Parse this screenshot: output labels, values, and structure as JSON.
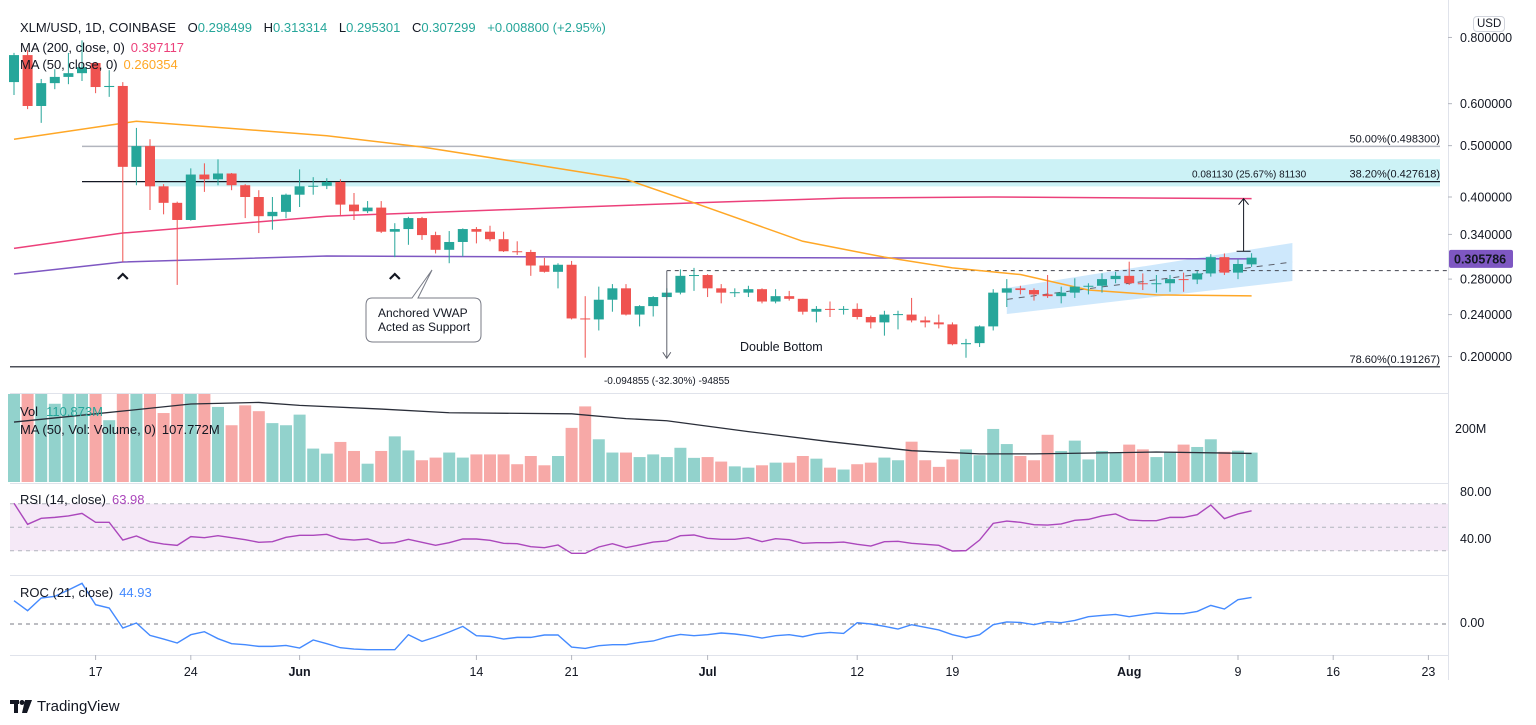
{
  "header": {
    "symbol": "XLM/USD, 1D, COINBASE",
    "o_label": "O",
    "o": "0.298499",
    "h_label": "H",
    "h": "0.313314",
    "l_label": "L",
    "l": "0.295301",
    "c_label": "C",
    "c": "0.307299",
    "change": "+0.008800 (+2.95%)"
  },
  "indicators": {
    "ma200_label": "MA (200, close, 0)",
    "ma200_value": "0.397117",
    "ma50_label": "MA (50, close, 0)",
    "ma50_value": "0.260354",
    "vol_label": "Vol",
    "vol_value": "110.873M",
    "vol_ma_label": "MA (50, Vol: Volume, 0)",
    "vol_ma_value": "107.772M",
    "rsi_label": "RSI (14, close)",
    "rsi_value": "63.98",
    "roc_label": "ROC (21, close)",
    "roc_value": "44.93"
  },
  "axis": {
    "currency": "USD",
    "price_ticks": [
      "0.800000",
      "0.600000",
      "0.500000",
      "0.400000",
      "0.340000",
      "0.280000",
      "0.240000",
      "0.200000"
    ],
    "current_price": "0.305786",
    "volume_tick": "200M",
    "rsi_ticks": [
      "80.00",
      "40.00"
    ],
    "roc_ticks": [
      "0.00"
    ],
    "time_ticks": [
      {
        "label": "17",
        "date": "May 17",
        "bold": false
      },
      {
        "label": "24",
        "date": "May 24",
        "bold": false
      },
      {
        "label": "Jun",
        "date": "Jun 1",
        "bold": true
      },
      {
        "label": "14",
        "date": "Jun 14",
        "bold": false
      },
      {
        "label": "21",
        "date": "Jun 21",
        "bold": false
      },
      {
        "label": "Jul",
        "date": "Jul 1",
        "bold": true
      },
      {
        "label": "12",
        "date": "Jul 12",
        "bold": false
      },
      {
        "label": "19",
        "date": "Jul 19",
        "bold": false
      },
      {
        "label": "Aug",
        "date": "Aug 1",
        "bold": true
      },
      {
        "label": "9",
        "date": "Aug 9",
        "bold": false
      },
      {
        "label": "16",
        "date": "Aug 16",
        "bold": false
      },
      {
        "label": "23",
        "date": "Aug 23",
        "bold": false
      }
    ]
  },
  "annotations": {
    "fib_50": {
      "label": "50.00%(0.498300)",
      "price": 0.4983,
      "from": "May 16"
    },
    "fib_382": {
      "label": "38.20%(0.427618)",
      "price": 0.427618,
      "from": "May 16"
    },
    "fib_786": {
      "label": "78.60%(0.191267)",
      "price": 0.191267,
      "from": "May 11"
    },
    "resistance_zone": {
      "top": 0.4715,
      "bottom": 0.4188,
      "from": "May 21"
    },
    "neckline": {
      "price": 0.2905,
      "from": "Jun 28"
    },
    "measure_down": {
      "label": "-0.094855 (-32.30%) -94855",
      "date": "Jun 28",
      "from": 0.2905,
      "to": 0.1985
    },
    "measure_up": {
      "label": "0.081130 (25.67%) 81130",
      "date": "Aug 10",
      "from": 0.316,
      "to": 0.3971
    },
    "double_bottom_label": "Double Bottom",
    "callout_line1": "Anchored VWAP",
    "callout_line2": "Acted as Support",
    "support_markers": [
      "May 19",
      "Jun 8"
    ],
    "channel": {
      "from": "Jul 23",
      "to": "Aug 13",
      "upper": [
        0.2695,
        0.3276
      ],
      "lower": [
        0.2406,
        0.2777
      ],
      "mid": [
        0.2564,
        0.3016
      ]
    }
  },
  "colors": {
    "up": "#26a69a",
    "down": "#ef5350",
    "ma200": "#ec407a",
    "ma50": "#ffa726",
    "vwap": "#7e57c2",
    "rsi": "#ab47bc",
    "roc": "#448aff",
    "zone": "#00bcd4",
    "channel": "#2196f3"
  },
  "branding": {
    "logo_text": "TradingView"
  },
  "chart_data": {
    "type": "candlestick",
    "scale": "log",
    "candle_fields": [
      "date",
      "open",
      "high",
      "low",
      "close",
      "volume_M"
    ],
    "candles": [
      [
        "May 11",
        0.659,
        0.748,
        0.623,
        0.741,
        360
      ],
      [
        "May 12",
        0.741,
        0.757,
        0.586,
        0.594,
        400
      ],
      [
        "May 13",
        0.594,
        0.668,
        0.552,
        0.656,
        420
      ],
      [
        "May 14",
        0.656,
        0.697,
        0.639,
        0.674,
        295
      ],
      [
        "May 15",
        0.674,
        0.748,
        0.653,
        0.685,
        350
      ],
      [
        "May 16",
        0.685,
        0.79,
        0.662,
        0.703,
        380
      ],
      [
        "May 17",
        0.716,
        0.719,
        0.628,
        0.645,
        390
      ],
      [
        "May 18",
        0.645,
        0.694,
        0.618,
        0.648,
        233
      ],
      [
        "May 19",
        0.648,
        0.659,
        0.302,
        0.456,
        900
      ],
      [
        "May 20",
        0.456,
        0.54,
        0.421,
        0.499,
        600
      ],
      [
        "May 21",
        0.499,
        0.514,
        0.378,
        0.419,
        520
      ],
      [
        "May 22",
        0.419,
        0.423,
        0.371,
        0.39,
        260
      ],
      [
        "May 23",
        0.39,
        0.392,
        0.273,
        0.362,
        450
      ],
      [
        "May 24",
        0.362,
        0.453,
        0.361,
        0.441,
        420
      ],
      [
        "May 25",
        0.441,
        0.463,
        0.409,
        0.432,
        350
      ],
      [
        "May 26",
        0.432,
        0.471,
        0.421,
        0.443,
        283
      ],
      [
        "May 27",
        0.443,
        0.444,
        0.412,
        0.421,
        214
      ],
      [
        "May 28",
        0.421,
        0.423,
        0.365,
        0.4,
        289
      ],
      [
        "May 29",
        0.4,
        0.412,
        0.342,
        0.368,
        267
      ],
      [
        "May 30",
        0.368,
        0.4,
        0.347,
        0.375,
        222
      ],
      [
        "May 31",
        0.375,
        0.406,
        0.365,
        0.404,
        214
      ],
      [
        "Jun 1",
        0.404,
        0.451,
        0.383,
        0.419,
        254
      ],
      [
        "Jun 2",
        0.419,
        0.436,
        0.404,
        0.42,
        126
      ],
      [
        "Jun 3",
        0.42,
        0.434,
        0.414,
        0.427,
        107
      ],
      [
        "Jun 4",
        0.427,
        0.432,
        0.37,
        0.387,
        151
      ],
      [
        "Jun 5",
        0.387,
        0.407,
        0.362,
        0.376,
        117
      ],
      [
        "Jun 6",
        0.376,
        0.393,
        0.373,
        0.382,
        69
      ],
      [
        "Jun 7",
        0.382,
        0.393,
        0.342,
        0.344,
        117
      ],
      [
        "Jun 8",
        0.344,
        0.357,
        0.308,
        0.348,
        172
      ],
      [
        "Jun 9",
        0.348,
        0.367,
        0.325,
        0.365,
        119
      ],
      [
        "Jun 10",
        0.365,
        0.367,
        0.332,
        0.339,
        82
      ],
      [
        "Jun 11",
        0.339,
        0.344,
        0.313,
        0.318,
        92
      ],
      [
        "Jun 12",
        0.318,
        0.345,
        0.3,
        0.329,
        111
      ],
      [
        "Jun 13",
        0.329,
        0.349,
        0.309,
        0.348,
        92
      ],
      [
        "Jun 14",
        0.348,
        0.351,
        0.327,
        0.344,
        104
      ],
      [
        "Jun 15",
        0.344,
        0.353,
        0.33,
        0.333,
        104
      ],
      [
        "Jun 16",
        0.333,
        0.344,
        0.315,
        0.316,
        104
      ],
      [
        "Jun 17",
        0.316,
        0.33,
        0.311,
        0.315,
        67
      ],
      [
        "Jun 18",
        0.315,
        0.318,
        0.284,
        0.297,
        98
      ],
      [
        "Jun 19",
        0.297,
        0.307,
        0.288,
        0.289,
        63
      ],
      [
        "Jun 20",
        0.289,
        0.3,
        0.269,
        0.298,
        98
      ],
      [
        "Jun 21",
        0.298,
        0.303,
        0.235,
        0.236,
        204
      ],
      [
        "Jun 22",
        0.236,
        0.26,
        0.199,
        0.235,
        285
      ],
      [
        "Jun 23",
        0.235,
        0.271,
        0.224,
        0.256,
        161
      ],
      [
        "Jun 24",
        0.256,
        0.274,
        0.243,
        0.269,
        111
      ],
      [
        "Jun 25",
        0.269,
        0.274,
        0.239,
        0.24,
        111
      ],
      [
        "Jun 26",
        0.24,
        0.25,
        0.228,
        0.249,
        94
      ],
      [
        "Jun 27",
        0.249,
        0.26,
        0.238,
        0.259,
        104
      ],
      [
        "Jun 28",
        0.259,
        0.269,
        0.256,
        0.264,
        94
      ],
      [
        "Jun 29",
        0.264,
        0.292,
        0.262,
        0.284,
        129
      ],
      [
        "Jun 30",
        0.284,
        0.294,
        0.266,
        0.285,
        91
      ],
      [
        "Jul 1",
        0.285,
        0.286,
        0.259,
        0.269,
        94
      ],
      [
        "Jul 2",
        0.269,
        0.274,
        0.252,
        0.264,
        77
      ],
      [
        "Jul 3",
        0.264,
        0.269,
        0.259,
        0.2645,
        59
      ],
      [
        "Jul 4",
        0.264,
        0.272,
        0.259,
        0.268,
        54
      ],
      [
        "Jul 5",
        0.268,
        0.269,
        0.252,
        0.254,
        63
      ],
      [
        "Jul 6",
        0.254,
        0.268,
        0.252,
        0.26,
        73
      ],
      [
        "Jul 7",
        0.26,
        0.266,
        0.255,
        0.257,
        73
      ],
      [
        "Jul 8",
        0.257,
        0.257,
        0.24,
        0.243,
        98
      ],
      [
        "Jul 9",
        0.243,
        0.249,
        0.232,
        0.246,
        88
      ],
      [
        "Jul 10",
        0.246,
        0.254,
        0.2375,
        0.2455,
        54
      ],
      [
        "Jul 11",
        0.2455,
        0.249,
        0.24,
        0.246,
        47
      ],
      [
        "Jul 12",
        0.246,
        0.252,
        0.235,
        0.2375,
        67
      ],
      [
        "Jul 13",
        0.2375,
        0.239,
        0.226,
        0.232,
        73
      ],
      [
        "Jul 14",
        0.232,
        0.244,
        0.219,
        0.24,
        92
      ],
      [
        "Jul 15",
        0.24,
        0.244,
        0.225,
        0.2405,
        82
      ],
      [
        "Jul 16",
        0.24,
        0.258,
        0.232,
        0.234,
        152
      ],
      [
        "Jul 17",
        0.234,
        0.238,
        0.227,
        0.232,
        82
      ],
      [
        "Jul 18",
        0.232,
        0.24,
        0.226,
        0.23,
        57
      ],
      [
        "Jul 19",
        0.23,
        0.232,
        0.21,
        0.211,
        85
      ],
      [
        "Jul 20",
        0.211,
        0.216,
        0.199,
        0.212,
        123
      ],
      [
        "Jul 21",
        0.212,
        0.229,
        0.2085,
        0.228,
        101
      ],
      [
        "Jul 22",
        0.228,
        0.268,
        0.224,
        0.264,
        200
      ],
      [
        "Jul 23",
        0.264,
        0.28,
        0.248,
        0.269,
        143
      ],
      [
        "Jul 24",
        0.269,
        0.272,
        0.262,
        0.267,
        98
      ],
      [
        "Jul 25",
        0.267,
        0.269,
        0.255,
        0.262,
        82
      ],
      [
        "Jul 26",
        0.262,
        0.285,
        0.258,
        0.26,
        178
      ],
      [
        "Jul 27",
        0.26,
        0.271,
        0.252,
        0.264,
        117
      ],
      [
        "Jul 28",
        0.264,
        0.281,
        0.258,
        0.271,
        156
      ],
      [
        "Jul 29",
        0.271,
        0.275,
        0.262,
        0.272,
        85
      ],
      [
        "Jul 30",
        0.272,
        0.287,
        0.264,
        0.28,
        117
      ],
      [
        "Jul 31",
        0.28,
        0.289,
        0.275,
        0.284,
        111
      ],
      [
        "Aug 1",
        0.284,
        0.302,
        0.273,
        0.275,
        141
      ],
      [
        "Aug 2",
        0.275,
        0.287,
        0.267,
        0.2745,
        123
      ],
      [
        "Aug 3",
        0.2745,
        0.285,
        0.264,
        0.275,
        94
      ],
      [
        "Aug 4",
        0.275,
        0.285,
        0.265,
        0.28,
        114
      ],
      [
        "Aug 5",
        0.28,
        0.288,
        0.265,
        0.2795,
        141
      ],
      [
        "Aug 6",
        0.2795,
        0.29,
        0.274,
        0.287,
        132
      ],
      [
        "Aug 7",
        0.287,
        0.312,
        0.283,
        0.308,
        161
      ],
      [
        "Aug 8",
        0.308,
        0.313,
        0.285,
        0.288,
        114
      ],
      [
        "Aug 9",
        0.288,
        0.305,
        0.28,
        0.299,
        118
      ],
      [
        "Aug 10",
        0.298499,
        0.313314,
        0.295301,
        0.307299,
        110.873
      ]
    ],
    "ma200": [
      [
        "May 11",
        0.32
      ],
      [
        "May 19",
        0.342
      ],
      [
        "Jun 3",
        0.368
      ],
      [
        "Jun 30",
        0.39
      ],
      [
        "Jul 11",
        0.398
      ],
      [
        "Jul 22",
        0.4
      ],
      [
        "Aug 10",
        0.397117
      ]
    ],
    "ma50": [
      [
        "May 11",
        0.514
      ],
      [
        "May 20",
        0.556
      ],
      [
        "Jun 3",
        0.522
      ],
      [
        "Jun 10",
        0.497
      ],
      [
        "Jun 17",
        0.466
      ],
      [
        "Jun 25",
        0.432
      ],
      [
        "Jun 30",
        0.39
      ],
      [
        "Jul 8",
        0.33
      ],
      [
        "Jul 14",
        0.308
      ],
      [
        "Jul 19",
        0.294
      ],
      [
        "Jul 24",
        0.2856
      ],
      [
        "Jul 29",
        0.267
      ],
      [
        "Aug 3",
        0.2614
      ],
      [
        "Aug 10",
        0.260354
      ]
    ],
    "vwap": [
      [
        "May 11",
        0.2863
      ],
      [
        "May 19",
        0.3016
      ],
      [
        "Jun 3",
        0.3095
      ],
      [
        "Jul 1",
        0.3075
      ],
      [
        "Aug 10",
        0.305786
      ]
    ],
    "volume_ma": [
      [
        "May 11",
        226
      ],
      [
        "May 17",
        257
      ],
      [
        "May 24",
        294
      ],
      [
        "May 29",
        300
      ],
      [
        "Jun 1",
        289
      ],
      [
        "Jun 7",
        275
      ],
      [
        "Jun 12",
        261
      ],
      [
        "Jun 21",
        257
      ],
      [
        "Jun 25",
        239
      ],
      [
        "Jun 28",
        231
      ],
      [
        "Jul 4",
        190
      ],
      [
        "Jul 10",
        152
      ],
      [
        "Jul 16",
        118
      ],
      [
        "Jul 21",
        106
      ],
      [
        "Jul 25",
        106
      ],
      [
        "Aug 3",
        113
      ],
      [
        "Aug 10",
        107.772
      ]
    ],
    "rsi": [
      70.4,
      52.5,
      57.6,
      58.4,
      59.6,
      61.8,
      54.2,
      54.2,
      39.1,
      42.6,
      37.7,
      35.7,
      34.6,
      42,
      41.1,
      42.8,
      41.1,
      39.4,
      37.2,
      37.7,
      41.4,
      43.1,
      43.1,
      44,
      40,
      39.1,
      40,
      36.3,
      36.9,
      39.7,
      37.2,
      34.6,
      36.9,
      40,
      40,
      38.9,
      36.3,
      36,
      33.5,
      32.6,
      34.9,
      27.8,
      27.8,
      33.2,
      36,
      32.6,
      34.9,
      37.4,
      38.3,
      42.8,
      43.4,
      40.6,
      39.7,
      39.7,
      41.1,
      37.7,
      40.3,
      39.4,
      36.3,
      36.9,
      36.9,
      37.4,
      35.5,
      34,
      37.7,
      38,
      36.3,
      35.5,
      34.6,
      29.8,
      30.1,
      39.1,
      53.3,
      55.3,
      54.2,
      52.2,
      51.9,
      52.8,
      55.9,
      56.7,
      59.6,
      61.3,
      56.2,
      55.6,
      55.6,
      58.4,
      58.4,
      60.7,
      68.9,
      57.3,
      61.3,
      63.98
    ],
    "rsi_bands": [
      70,
      50,
      30
    ],
    "roc": [
      39.4,
      22.5,
      43.9,
      46.7,
      57.4,
      68.7,
      32.6,
      27,
      -6.8,
      1.7,
      -19.2,
      -25.4,
      -32.1,
      -18.1,
      -13,
      -24.8,
      -33.3,
      -35,
      -37.8,
      -37.8,
      -36.2,
      -40.6,
      -27,
      -33.3,
      -40.1,
      -42.3,
      -43.4,
      -43.4,
      -43.4,
      -18.1,
      -29.4,
      -22,
      -13.5,
      -4,
      -19.8,
      -20.9,
      -25.4,
      -22.6,
      -22.6,
      -18.6,
      -18.6,
      -38.9,
      -41.2,
      -36.7,
      -35,
      -35,
      -31.1,
      -28.7,
      -22,
      -17.6,
      -19.8,
      -18.1,
      -15.2,
      -16.9,
      -19.8,
      -23.7,
      -19.8,
      -18.1,
      -21.5,
      -16.4,
      -14.2,
      -15.9,
      2.2,
      0,
      -4,
      -8.5,
      -1.2,
      -5.7,
      -10.1,
      -18.1,
      -23.2,
      -18.1,
      -1.2,
      3.4,
      2.7,
      -1.2,
      3.9,
      2.2,
      6.1,
      12.3,
      14.5,
      16.2,
      12.3,
      15.7,
      18.6,
      17.4,
      17.4,
      21.3,
      31.4,
      25.3,
      41.1,
      44.93
    ]
  }
}
